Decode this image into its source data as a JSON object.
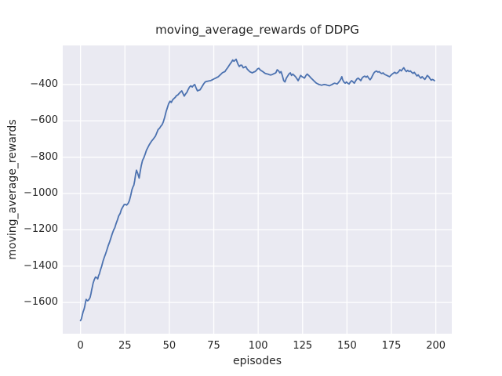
{
  "chart_data": {
    "type": "line",
    "title": "moving_average_rewards of DDPG",
    "xlabel": "episodes",
    "ylabel": "moving_average_rewards",
    "x_ticks": [
      0,
      25,
      50,
      75,
      100,
      125,
      150,
      175,
      200
    ],
    "y_ticks": [
      -400,
      -600,
      -800,
      -1000,
      -1200,
      -1400,
      -1600
    ],
    "xlim": [
      -10,
      209
    ],
    "ylim": [
      -1772,
      -185
    ],
    "grid": true,
    "legend": "none",
    "colors": {
      "line": "#4c72b0",
      "plot_background": "#eaeaf2",
      "gridline": "#ffffff",
      "text": "#262626",
      "figure_background": "#ffffff"
    },
    "series": [
      {
        "name": "moving_average_rewards",
        "points": [
          [
            0,
            -1700
          ],
          [
            0.5,
            -1690
          ],
          [
            1,
            -1670
          ],
          [
            1.5,
            -1651
          ],
          [
            2,
            -1637
          ],
          [
            2.4,
            -1621
          ],
          [
            2.8,
            -1598
          ],
          [
            3.2,
            -1583
          ],
          [
            3.6,
            -1588
          ],
          [
            4,
            -1591
          ],
          [
            4.5,
            -1587
          ],
          [
            5,
            -1580
          ],
          [
            5.4,
            -1572
          ],
          [
            5.9,
            -1551
          ],
          [
            6.3,
            -1530
          ],
          [
            6.7,
            -1513
          ],
          [
            7.1,
            -1494
          ],
          [
            7.8,
            -1473
          ],
          [
            8.4,
            -1460
          ],
          [
            9,
            -1463
          ],
          [
            9.7,
            -1470
          ],
          [
            10.2,
            -1452
          ],
          [
            10.6,
            -1443
          ],
          [
            11.2,
            -1422
          ],
          [
            11.9,
            -1401
          ],
          [
            12.7,
            -1372
          ],
          [
            13.4,
            -1351
          ],
          [
            14.2,
            -1330
          ],
          [
            14.9,
            -1309
          ],
          [
            15.6,
            -1287
          ],
          [
            16.4,
            -1266
          ],
          [
            17.1,
            -1245
          ],
          [
            17.8,
            -1223
          ],
          [
            18.6,
            -1202
          ],
          [
            19.3,
            -1188
          ],
          [
            20,
            -1167
          ],
          [
            20.8,
            -1145
          ],
          [
            21.5,
            -1124
          ],
          [
            22.3,
            -1110
          ],
          [
            23,
            -1089
          ],
          [
            23.8,
            -1074
          ],
          [
            24.6,
            -1061
          ],
          [
            25.2,
            -1060
          ],
          [
            26,
            -1064
          ],
          [
            26.8,
            -1055
          ],
          [
            27.5,
            -1040
          ],
          [
            28.3,
            -1010
          ],
          [
            29,
            -978
          ],
          [
            29.6,
            -962
          ],
          [
            30,
            -955
          ],
          [
            30.5,
            -930
          ],
          [
            31,
            -895
          ],
          [
            31.5,
            -872
          ],
          [
            32.2,
            -890
          ],
          [
            33,
            -915
          ],
          [
            33.6,
            -880
          ],
          [
            34.2,
            -847
          ],
          [
            34.9,
            -818
          ],
          [
            35.6,
            -804
          ],
          [
            36.4,
            -783
          ],
          [
            37.1,
            -762
          ],
          [
            38,
            -745
          ],
          [
            38.6,
            -733
          ],
          [
            39.3,
            -722
          ],
          [
            40,
            -712
          ],
          [
            41,
            -700
          ],
          [
            42.2,
            -684
          ],
          [
            43,
            -665
          ],
          [
            43.7,
            -648
          ],
          [
            44.5,
            -641
          ],
          [
            45.2,
            -630
          ],
          [
            46,
            -620
          ],
          [
            46.6,
            -606
          ],
          [
            47.4,
            -580
          ],
          [
            48.2,
            -549
          ],
          [
            49,
            -525
          ],
          [
            49.6,
            -506
          ],
          [
            50.4,
            -492
          ],
          [
            51.1,
            -499
          ],
          [
            51.8,
            -485
          ],
          [
            52.5,
            -478
          ],
          [
            53.3,
            -471
          ],
          [
            54,
            -462
          ],
          [
            54.8,
            -457
          ],
          [
            55.5,
            -450
          ],
          [
            56.2,
            -442
          ],
          [
            57,
            -435
          ],
          [
            57.7,
            -450
          ],
          [
            58.4,
            -464
          ],
          [
            59.1,
            -453
          ],
          [
            59.9,
            -443
          ],
          [
            60.6,
            -428
          ],
          [
            61.3,
            -415
          ],
          [
            62.1,
            -407
          ],
          [
            62.9,
            -414
          ],
          [
            63.6,
            -405
          ],
          [
            64.3,
            -400
          ],
          [
            65,
            -418
          ],
          [
            65.8,
            -435
          ],
          [
            66.5,
            -432
          ],
          [
            67.3,
            -429
          ],
          [
            68,
            -418
          ],
          [
            68.7,
            -407
          ],
          [
            69.4,
            -396
          ],
          [
            70.2,
            -386
          ],
          [
            71,
            -383
          ],
          [
            71.7,
            -382
          ],
          [
            72.4,
            -380
          ],
          [
            73.2,
            -379
          ],
          [
            74,
            -375
          ],
          [
            74.6,
            -372
          ],
          [
            75.4,
            -368
          ],
          [
            76.1,
            -365
          ],
          [
            76.8,
            -361
          ],
          [
            77.6,
            -357
          ],
          [
            78.3,
            -350
          ],
          [
            79.1,
            -343
          ],
          [
            79.8,
            -336
          ],
          [
            80.5,
            -332
          ],
          [
            81.3,
            -329
          ],
          [
            82,
            -318
          ],
          [
            82.8,
            -308
          ],
          [
            83.5,
            -297
          ],
          [
            84.2,
            -287
          ],
          [
            85,
            -276
          ],
          [
            85.7,
            -265
          ],
          [
            86.4,
            -272
          ],
          [
            87.6,
            -261
          ],
          [
            88.6,
            -287
          ],
          [
            89.4,
            -301
          ],
          [
            90.1,
            -294
          ],
          [
            90.8,
            -294
          ],
          [
            91.6,
            -308
          ],
          [
            92.3,
            -305
          ],
          [
            93,
            -301
          ],
          [
            93.8,
            -315
          ],
          [
            94.5,
            -322
          ],
          [
            95.2,
            -329
          ],
          [
            96,
            -333
          ],
          [
            96.7,
            -336
          ],
          [
            97.4,
            -332
          ],
          [
            98.2,
            -329
          ],
          [
            99,
            -322
          ],
          [
            99.6,
            -315
          ],
          [
            100.4,
            -311
          ],
          [
            101.1,
            -319
          ],
          [
            101.8,
            -324
          ],
          [
            102.6,
            -329
          ],
          [
            103.3,
            -334
          ],
          [
            104,
            -339
          ],
          [
            104.8,
            -341
          ],
          [
            105.5,
            -343
          ],
          [
            106.2,
            -346
          ],
          [
            107,
            -348
          ],
          [
            107.7,
            -346
          ],
          [
            108.4,
            -343
          ],
          [
            109.2,
            -339
          ],
          [
            109.9,
            -336
          ],
          [
            110.7,
            -319
          ],
          [
            111.4,
            -324
          ],
          [
            112.2,
            -336
          ],
          [
            112.9,
            -329
          ],
          [
            113.6,
            -350
          ],
          [
            114.4,
            -379
          ],
          [
            115.1,
            -386
          ],
          [
            115.9,
            -365
          ],
          [
            116.6,
            -354
          ],
          [
            117.3,
            -343
          ],
          [
            118.1,
            -336
          ],
          [
            118.8,
            -350
          ],
          [
            119.5,
            -343
          ],
          [
            120.3,
            -350
          ],
          [
            121,
            -357
          ],
          [
            121.8,
            -368
          ],
          [
            122.5,
            -379
          ],
          [
            123.2,
            -365
          ],
          [
            123.9,
            -350
          ],
          [
            124.7,
            -357
          ],
          [
            125.4,
            -361
          ],
          [
            126.1,
            -365
          ],
          [
            126.9,
            -350
          ],
          [
            127.6,
            -343
          ],
          [
            128.4,
            -350
          ],
          [
            129.1,
            -357
          ],
          [
            129.8,
            -365
          ],
          [
            130.6,
            -372
          ],
          [
            131.3,
            -379
          ],
          [
            132,
            -386
          ],
          [
            132.8,
            -393
          ],
          [
            133.5,
            -396
          ],
          [
            134.2,
            -400
          ],
          [
            135,
            -402
          ],
          [
            135.7,
            -404
          ],
          [
            136.4,
            -402
          ],
          [
            137.2,
            -400
          ],
          [
            138,
            -401
          ],
          [
            138.7,
            -403
          ],
          [
            139.4,
            -405
          ],
          [
            140.1,
            -407
          ],
          [
            140.9,
            -403
          ],
          [
            141.6,
            -400
          ],
          [
            142.3,
            -396
          ],
          [
            143.1,
            -393
          ],
          [
            143.8,
            -395
          ],
          [
            144.5,
            -397
          ],
          [
            145.3,
            -388
          ],
          [
            146,
            -379
          ],
          [
            146.6,
            -368
          ],
          [
            147.1,
            -357
          ],
          [
            147.5,
            -372
          ],
          [
            148.2,
            -386
          ],
          [
            149,
            -393
          ],
          [
            149.7,
            -386
          ],
          [
            150.4,
            -393
          ],
          [
            151.2,
            -397
          ],
          [
            151.9,
            -386
          ],
          [
            152.6,
            -379
          ],
          [
            153.4,
            -386
          ],
          [
            154.1,
            -393
          ],
          [
            154.9,
            -379
          ],
          [
            155.6,
            -369
          ],
          [
            156.3,
            -365
          ],
          [
            157.1,
            -372
          ],
          [
            157.8,
            -379
          ],
          [
            158.5,
            -365
          ],
          [
            159.3,
            -357
          ],
          [
            160,
            -354
          ],
          [
            160.8,
            -360
          ],
          [
            161.5,
            -354
          ],
          [
            162.2,
            -365
          ],
          [
            163,
            -374
          ],
          [
            163.7,
            -365
          ],
          [
            164.4,
            -350
          ],
          [
            165.2,
            -336
          ],
          [
            165.9,
            -329
          ],
          [
            166.6,
            -326
          ],
          [
            167.4,
            -332
          ],
          [
            168.1,
            -329
          ],
          [
            168.8,
            -336
          ],
          [
            169.6,
            -340
          ],
          [
            170.3,
            -336
          ],
          [
            171,
            -343
          ],
          [
            171.8,
            -347
          ],
          [
            172.5,
            -350
          ],
          [
            173.3,
            -354
          ],
          [
            174,
            -357
          ],
          [
            174.7,
            -350
          ],
          [
            175.4,
            -343
          ],
          [
            176.1,
            -338
          ],
          [
            176.9,
            -333
          ],
          [
            177.6,
            -339
          ],
          [
            178.4,
            -336
          ],
          [
            179.1,
            -329
          ],
          [
            179.8,
            -319
          ],
          [
            180.6,
            -325
          ],
          [
            181.3,
            -315
          ],
          [
            182,
            -308
          ],
          [
            182.8,
            -322
          ],
          [
            183.5,
            -329
          ],
          [
            184.2,
            -322
          ],
          [
            185,
            -329
          ],
          [
            185.7,
            -325
          ],
          [
            186.4,
            -333
          ],
          [
            187.2,
            -339
          ],
          [
            187.9,
            -333
          ],
          [
            188.6,
            -343
          ],
          [
            189.4,
            -353
          ],
          [
            190.1,
            -347
          ],
          [
            190.8,
            -357
          ],
          [
            191.6,
            -365
          ],
          [
            192.3,
            -357
          ],
          [
            193,
            -365
          ],
          [
            193.8,
            -372
          ],
          [
            194.5,
            -362
          ],
          [
            195.2,
            -350
          ],
          [
            196,
            -357
          ],
          [
            196.7,
            -367
          ],
          [
            197.4,
            -376
          ],
          [
            198.2,
            -372
          ],
          [
            198.9,
            -376
          ],
          [
            199.3,
            -379
          ]
        ]
      }
    ]
  }
}
